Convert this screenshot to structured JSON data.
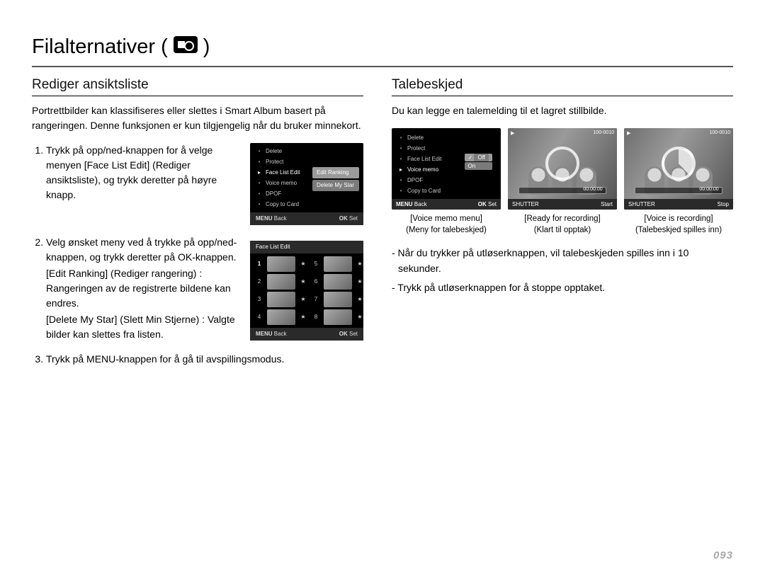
{
  "page": {
    "title": "Filalternativer (",
    "title_suffix": ")",
    "page_number": "093"
  },
  "left": {
    "heading": "Rediger ansiktsliste",
    "intro": "Portrettbilder kan klassifiseres eller slettes i Smart Album basert på rangeringen. Denne funksjonen er kun tilgjengelig når du bruker minnekort.",
    "step1": "Trykk på opp/ned-knappen for å velge menyen [Face List Edit] (Rediger ansiktsliste), og trykk deretter på høyre knapp.",
    "step2": "Velg ønsket meny ved å trykke på opp/ned-knappen, og trykk deretter på OK-knappen.",
    "step2_sub1": "[Edit Ranking] (Rediger rangering) : Rangeringen av de registrerte bildene kan endres.",
    "step2_sub2": "[Delete My Star] (Slett Min Stjerne) : Valgte bilder kan slettes fra listen.",
    "step3": "Trykk på MENU-knappen for å gå til avspillingsmodus.",
    "menu": {
      "items": [
        "Delete",
        "Protect",
        "Face List Edit",
        "Voice memo",
        "DPOF",
        "Copy to Card"
      ],
      "selected_index": 2,
      "submenu": [
        "Edit Ranking",
        "Delete My Star"
      ],
      "bar_left_key": "MENU",
      "bar_left_label": "Back",
      "bar_right_key": "OK",
      "bar_right_label": "Set"
    },
    "facegrid": {
      "title": "Face List Edit",
      "left_nums": [
        "1",
        "2",
        "3",
        "4"
      ],
      "right_nums": [
        "5",
        "6",
        "7",
        "8"
      ],
      "bar_left_key": "MENU",
      "bar_left_label": "Back",
      "bar_right_key": "OK",
      "bar_right_label": "Set"
    }
  },
  "right": {
    "heading": "Talebeskjed",
    "intro": "Du kan legge en talemelding til et lagret stillbilde.",
    "menu": {
      "items": [
        "Delete",
        "Protect",
        "Face List Edit",
        "Voice memo",
        "DPOF",
        "Copy to Card"
      ],
      "selected_index": 3,
      "options": [
        "Off",
        "On"
      ],
      "bar_left_key": "MENU",
      "bar_left_label": "Back",
      "bar_right_key": "OK",
      "bar_right_label": "Set"
    },
    "shots": {
      "id_label": "100-0010",
      "timer": "00:00:00",
      "cap1_a": "[Voice memo menu]",
      "cap1_b": "(Meny for talebeskjed)",
      "cap2_a": "[Ready for recording]",
      "cap2_b": "(Klart til opptak)",
      "cap3_a": "[Voice is recording]",
      "cap3_b": "(Talebeskjed spilles inn)",
      "bar2_left": "SHUTTER",
      "bar2_right": "Start",
      "bar3_left": "SHUTTER",
      "bar3_right": "Stop"
    },
    "note1": "- Når du trykker på utløserknappen, vil talebeskjeden spilles inn i 10 sekunder.",
    "note2": "- Trykk på utløserknappen for å stoppe opptaket."
  }
}
